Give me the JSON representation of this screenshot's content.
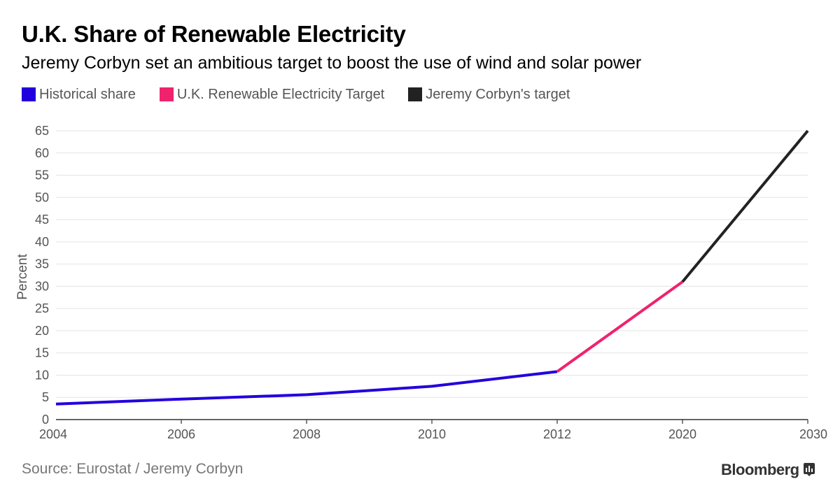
{
  "title": "U.K. Share of Renewable Electricity",
  "subtitle": "Jeremy Corbyn set an ambitious target to boost the use of wind and solar power",
  "legend": [
    {
      "label": "Historical share",
      "color": "#2200dd"
    },
    {
      "label": "U.K. Renewable Electricity Target",
      "color": "#f0226e"
    },
    {
      "label": "Jeremy Corbyn's target",
      "color": "#222222"
    }
  ],
  "source": "Source: Eurostat / Jeremy Corbyn",
  "brand": "Bloomberg",
  "brand_icon": "bloomberg-terminal-icon",
  "chart_data": {
    "type": "line",
    "categories": [
      "2004",
      "2006",
      "2008",
      "2010",
      "2012",
      "2020",
      "2030"
    ],
    "series": [
      {
        "name": "Historical share",
        "color": "#2200dd",
        "points": [
          [
            "2004",
            3.5
          ],
          [
            "2006",
            4.6
          ],
          [
            "2008",
            5.6
          ],
          [
            "2010",
            7.5
          ],
          [
            "2012",
            10.8
          ]
        ]
      },
      {
        "name": "U.K. Renewable Electricity Target",
        "color": "#f0226e",
        "points": [
          [
            "2012",
            10.8
          ],
          [
            "2020",
            31
          ]
        ]
      },
      {
        "name": "Jeremy Corbyn's target",
        "color": "#222222",
        "points": [
          [
            "2020",
            31
          ],
          [
            "2030",
            65
          ]
        ]
      }
    ],
    "ylabel": "Percent",
    "xlabel": "",
    "ylim": [
      0,
      65
    ],
    "yticks": [
      0,
      5,
      10,
      15,
      20,
      25,
      30,
      35,
      40,
      45,
      50,
      55,
      60,
      65
    ],
    "grid": true
  }
}
